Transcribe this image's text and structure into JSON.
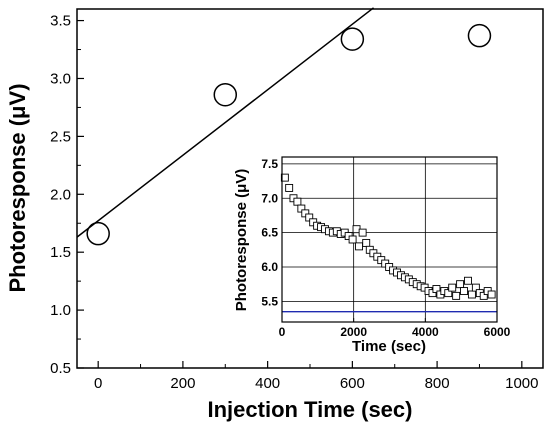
{
  "chart_data": [
    {
      "type": "scatter",
      "xlabel": "Injection Time (sec)",
      "ylabel": "Photoresponse (μV)",
      "xlim": [
        -50,
        1050
      ],
      "ylim": [
        0.5,
        3.6
      ],
      "xticks": [
        0,
        200,
        400,
        600,
        800,
        1000
      ],
      "yticks": [
        0.5,
        1.0,
        1.5,
        2.0,
        2.5,
        3.0,
        3.5
      ],
      "xtick_labels": [
        "0",
        "200",
        "400",
        "600",
        "800",
        "1000"
      ],
      "ytick_labels": [
        "0.5",
        "1.0",
        "1.5",
        "2.0",
        "2.5",
        "3.0",
        "3.5"
      ],
      "grid": false,
      "marker": "open-circle",
      "points": [
        {
          "x": 0,
          "y": 1.66
        },
        {
          "x": 300,
          "y": 2.86
        },
        {
          "x": 600,
          "y": 3.34
        },
        {
          "x": 900,
          "y": 3.37
        }
      ],
      "fit_line": {
        "x": [
          -50,
          650
        ],
        "y": [
          1.63,
          3.61
        ]
      }
    },
    {
      "type": "scatter",
      "position": "inset-lower-right",
      "xlabel": "Time (sec)",
      "ylabel": "Photoresponse (μV)",
      "xlim": [
        0,
        6000
      ],
      "ylim": [
        5.2,
        7.6
      ],
      "xticks": [
        0,
        2000,
        4000,
        6000
      ],
      "yticks": [
        5.5,
        6.0,
        6.5,
        7.0,
        7.5
      ],
      "xtick_labels": [
        "0",
        "2000",
        "4000",
        "6000"
      ],
      "ytick_labels": [
        "5.5",
        "6.0",
        "6.5",
        "7.0",
        "7.5"
      ],
      "grid": true,
      "marker": "open-square",
      "baseline": {
        "y": 5.35,
        "color": "#1f2bb0"
      },
      "x": [
        80,
        200,
        320,
        430,
        540,
        650,
        760,
        870,
        980,
        1090,
        1200,
        1310,
        1420,
        1530,
        1640,
        1750,
        1860,
        1970,
        2080,
        2150,
        2250,
        2350,
        2450,
        2550,
        2660,
        2770,
        2880,
        2990,
        3100,
        3210,
        3320,
        3430,
        3540,
        3650,
        3760,
        3870,
        3980,
        4090,
        4200,
        4310,
        4420,
        4530,
        4640,
        4750,
        4860,
        4970,
        5080,
        5190,
        5300,
        5410,
        5520,
        5630,
        5740,
        5850
      ],
      "y": [
        7.3,
        7.15,
        7.0,
        6.95,
        6.85,
        6.78,
        6.72,
        6.65,
        6.6,
        6.58,
        6.55,
        6.52,
        6.5,
        6.52,
        6.48,
        6.5,
        6.45,
        6.4,
        6.55,
        6.3,
        6.5,
        6.35,
        6.25,
        6.2,
        6.15,
        6.1,
        6.05,
        6.0,
        5.95,
        5.92,
        5.88,
        5.85,
        5.82,
        5.78,
        5.75,
        5.72,
        5.7,
        5.65,
        5.62,
        5.68,
        5.6,
        5.65,
        5.62,
        5.7,
        5.58,
        5.75,
        5.65,
        5.8,
        5.6,
        5.7,
        5.62,
        5.58,
        5.65,
        5.6
      ]
    }
  ]
}
